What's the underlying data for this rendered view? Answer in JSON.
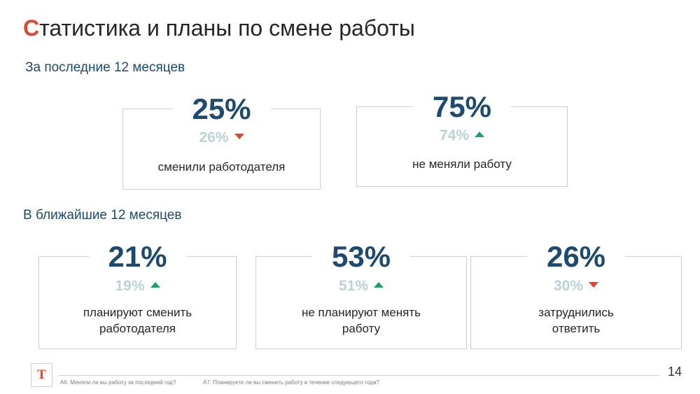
{
  "title": {
    "first_letter": "С",
    "rest": "татистика и планы по смене работы"
  },
  "past": {
    "heading": "За последние 12 месяцев",
    "cards": [
      {
        "value": "25%",
        "prev": "26%",
        "trend": "down",
        "label_lines": [
          "сменили работодателя"
        ]
      },
      {
        "value": "75%",
        "prev": "74%",
        "trend": "up",
        "label_lines": [
          "не меняли работу"
        ]
      }
    ]
  },
  "future": {
    "heading": "В ближайшие 12 месяцев",
    "cards": [
      {
        "value": "21%",
        "prev": "19%",
        "trend": "up",
        "label_lines": [
          "планируют сменить",
          "работодателя"
        ]
      },
      {
        "value": "53%",
        "prev": "51%",
        "trend": "up",
        "label_lines": [
          "не планируют менять",
          "работу"
        ]
      },
      {
        "value": "26%",
        "prev": "30%",
        "trend": "down",
        "label_lines": [
          "затруднились",
          "ответить"
        ]
      }
    ]
  },
  "footer": {
    "logo_letter": "T",
    "note_a6": "А6. Меняли ли вы работу за последний год?",
    "note_a7": "А7. Планируете ли вы сменить работу в течение следующего года?",
    "page_number": "14"
  },
  "colors": {
    "accent": "#e0452c",
    "primary": "#1d4a6e",
    "up": "#1e9e6a",
    "down": "#e0452c",
    "muted": "#b8d2d6"
  }
}
